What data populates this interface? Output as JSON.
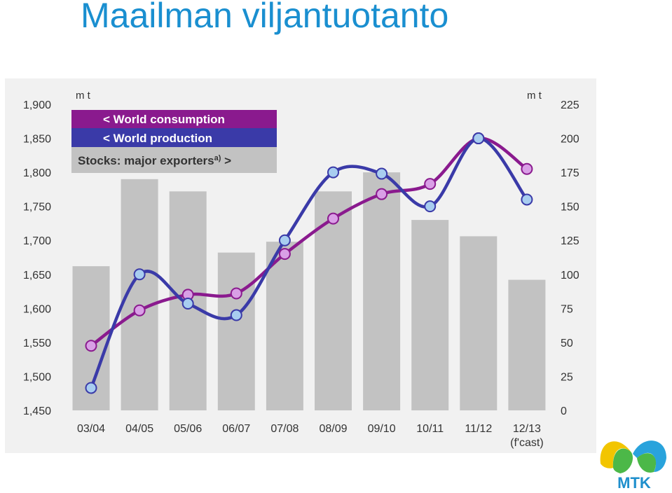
{
  "slide": {
    "title": "Maailman viljantuotanto"
  },
  "colors": {
    "consumption": "#8a1a8e",
    "consumption_marker": "#d99fe6",
    "production": "#3a3aa8",
    "production_marker": "#a8cdf0",
    "stocks": "#c2c2c2",
    "title": "#1a8fd0",
    "panel_bg": "#f1f1f1"
  },
  "chart_data": {
    "type": "bar+line",
    "categories": [
      "03/04",
      "04/05",
      "05/06",
      "06/07",
      "07/08",
      "08/09",
      "09/10",
      "10/11",
      "11/12",
      "12/13"
    ],
    "category_sublabels": [
      "",
      "",
      "",
      "",
      "",
      "",
      "",
      "",
      "",
      "(f'cast)"
    ],
    "left_unit": "m t",
    "right_unit": "m t",
    "left_ylim": [
      1450,
      1900
    ],
    "right_ylim": [
      0,
      225
    ],
    "left_ticks": [
      "1,450",
      "1,500",
      "1,550",
      "1,600",
      "1,650",
      "1,700",
      "1,750",
      "1,800",
      "1,850",
      "1,900"
    ],
    "right_ticks": [
      "0",
      "25",
      "50",
      "75",
      "100",
      "125",
      "150",
      "175",
      "200",
      "225"
    ],
    "grid": false,
    "legend_position": "top-left",
    "series": [
      {
        "name": "< World consumption",
        "kind": "line",
        "axis": "left",
        "values": [
          1545,
          1597,
          1620,
          1622,
          1680,
          1732,
          1768,
          1783,
          1850,
          1805
        ]
      },
      {
        "name": "< World production",
        "kind": "line",
        "axis": "left",
        "values": [
          1483,
          1650,
          1607,
          1590,
          1700,
          1800,
          1798,
          1750,
          1850,
          1760
        ]
      },
      {
        "name": "Stocks: major exporters",
        "legend_suffix": " >",
        "footnote_mark": "a)",
        "kind": "bar",
        "axis": "right",
        "values": [
          106,
          170,
          161,
          116,
          124,
          161,
          175,
          140,
          128,
          96
        ]
      }
    ]
  },
  "logo": {
    "text": "MTK"
  }
}
